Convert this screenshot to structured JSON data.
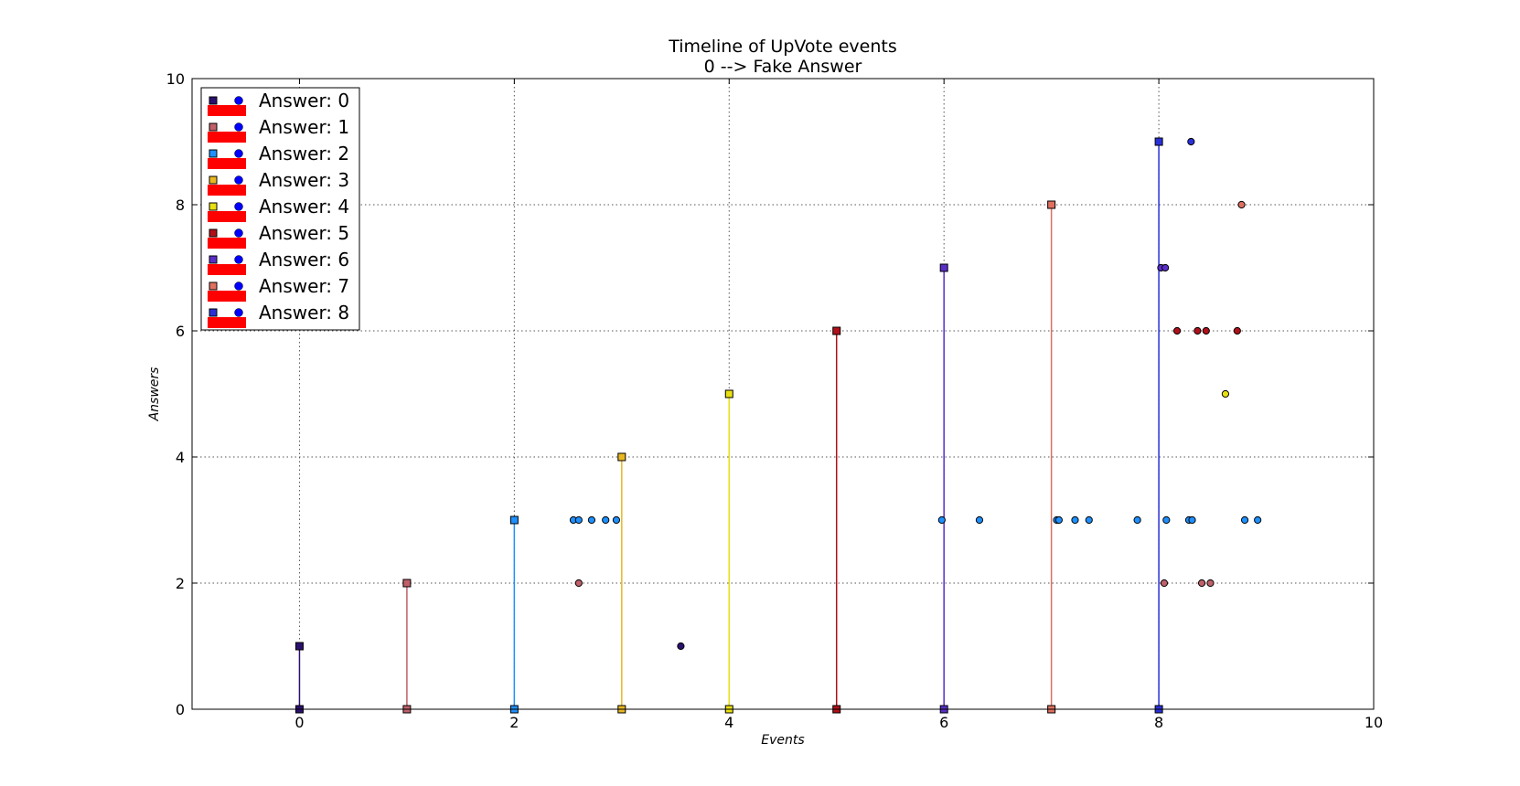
{
  "chart_data": {
    "type": "scatter",
    "title": "Timeline of UpVote events",
    "subtitle": "0 --> Fake Answer",
    "xlabel": "Events",
    "ylabel": "Answers",
    "xlim": [
      -1,
      10
    ],
    "ylim": [
      0,
      10
    ],
    "xticks": [
      0,
      2,
      4,
      6,
      8,
      10
    ],
    "yticks": [
      0,
      2,
      4,
      6,
      8,
      10
    ],
    "grid": true,
    "legend_position": "top-left",
    "colors": [
      "#2b1070",
      "#c0606a",
      "#1e90ff",
      "#e8b820",
      "#e8e010",
      "#b0101a",
      "#5a2ec8",
      "#e07060",
      "#2a30d8"
    ],
    "series": [
      {
        "name": "Answer: 0",
        "stem_x": 0,
        "stem_top": 1,
        "events": [
          [
            3.55,
            1
          ]
        ]
      },
      {
        "name": "Answer: 1",
        "stem_x": 1,
        "stem_top": 2,
        "events": [
          [
            2.6,
            2
          ],
          [
            8.05,
            2
          ],
          [
            8.4,
            2
          ],
          [
            8.48,
            2
          ]
        ]
      },
      {
        "name": "Answer: 2",
        "stem_x": 2,
        "stem_top": 3,
        "events": [
          [
            2.55,
            3
          ],
          [
            2.6,
            3
          ],
          [
            2.72,
            3
          ],
          [
            2.85,
            3
          ],
          [
            2.95,
            3
          ],
          [
            5.98,
            3
          ],
          [
            6.33,
            3
          ],
          [
            7.05,
            3
          ],
          [
            7.07,
            3
          ],
          [
            7.22,
            3
          ],
          [
            7.35,
            3
          ],
          [
            7.8,
            3
          ],
          [
            8.07,
            3
          ],
          [
            8.28,
            3
          ],
          [
            8.31,
            3
          ],
          [
            8.8,
            3
          ],
          [
            8.92,
            3
          ]
        ]
      },
      {
        "name": "Answer: 3",
        "stem_x": 3,
        "stem_top": 4,
        "events": []
      },
      {
        "name": "Answer: 4",
        "stem_x": 4,
        "stem_top": 5,
        "events": [
          [
            8.62,
            5
          ]
        ]
      },
      {
        "name": "Answer: 5",
        "stem_x": 5,
        "stem_top": 6,
        "events": [
          [
            8.17,
            6
          ],
          [
            8.36,
            6
          ],
          [
            8.44,
            6
          ],
          [
            8.73,
            6
          ]
        ]
      },
      {
        "name": "Answer: 6",
        "stem_x": 6,
        "stem_top": 7,
        "events": [
          [
            8.02,
            7
          ],
          [
            8.06,
            7
          ]
        ]
      },
      {
        "name": "Answer: 7",
        "stem_x": 7,
        "stem_top": 8,
        "events": [
          [
            8.77,
            8
          ]
        ]
      },
      {
        "name": "Answer: 8",
        "stem_x": 8,
        "stem_top": 9,
        "events": [
          [
            8.3,
            9
          ]
        ]
      }
    ]
  }
}
